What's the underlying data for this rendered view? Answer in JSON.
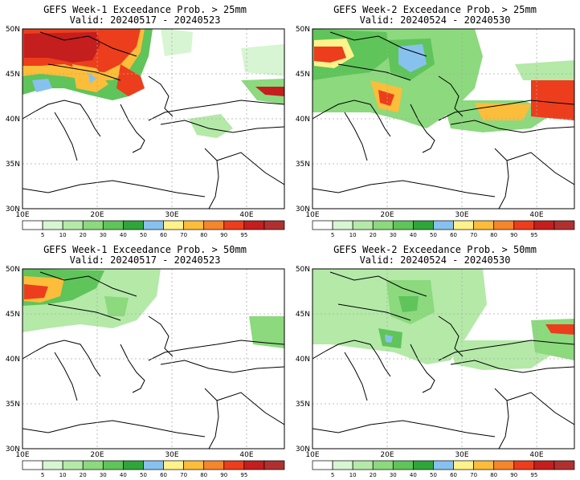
{
  "colorbar": {
    "colors": [
      "#ffffff",
      "#d7f5d2",
      "#b4e9a8",
      "#8cd97e",
      "#5fc45a",
      "#2fa53a",
      "#87c2ee",
      "#fff28a",
      "#fbbd3a",
      "#f6862a",
      "#ec3e1c",
      "#c41e1e",
      "#b03030"
    ],
    "labels": [
      "5",
      "10",
      "20",
      "30",
      "40",
      "50",
      "60",
      "70",
      "80",
      "90",
      "95"
    ]
  },
  "panels": [
    {
      "title": "GEFS Week-1 Exceedance Prob. > 25mm",
      "subtitle": "Valid: 20240517 - 20240523",
      "lat_labels": [
        "50N",
        "45N",
        "40N",
        "35N",
        "30N"
      ],
      "lon_labels": [
        "10E",
        "20E",
        "30E",
        "40E"
      ]
    },
    {
      "title": "GEFS Week-2 Exceedance Prob. > 25mm",
      "subtitle": "Valid: 20240524 - 20240530",
      "lat_labels": [
        "50N",
        "45N",
        "40N",
        "35N",
        "30N"
      ],
      "lon_labels": [
        "10E",
        "20E",
        "30E",
        "40E"
      ]
    },
    {
      "title": "GEFS Week-1 Exceedance Prob. > 50mm",
      "subtitle": "Valid: 20240517 - 20240523",
      "lat_labels": [
        "50N",
        "45N",
        "40N",
        "35N",
        "30N"
      ],
      "lon_labels": [
        "10E",
        "20E",
        "30E",
        "40E"
      ]
    },
    {
      "title": "GEFS Week-2 Exceedance Prob. > 50mm",
      "subtitle": "Valid: 20240524 - 20240530",
      "lat_labels": [
        "50N",
        "45N",
        "40N",
        "35N",
        "30N"
      ],
      "lon_labels": [
        "10E",
        "20E",
        "30E",
        "40E"
      ]
    }
  ]
}
